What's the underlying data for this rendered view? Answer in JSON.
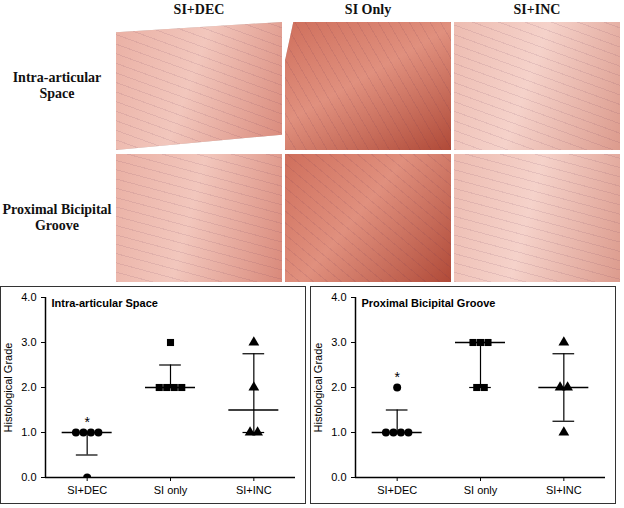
{
  "panel_images": {
    "column_labels": [
      "SI+DEC",
      "SI Only",
      "SI+INC"
    ],
    "row_labels": [
      "Intra-articular Space",
      "Proximal Bicipital Groove"
    ]
  },
  "chart_data": [
    {
      "type": "scatter",
      "title": "Intra-articular Space",
      "ylabel": "Histological Grade",
      "categories": [
        "SI+DEC",
        "SI only",
        "SI+INC"
      ],
      "markers": [
        "circle",
        "square",
        "triangle"
      ],
      "color": "#000000",
      "points": [
        [
          1,
          1,
          1,
          1,
          0
        ],
        [
          2,
          2,
          2,
          2,
          3
        ],
        [
          3,
          2,
          1,
          1
        ]
      ],
      "medians": [
        1,
        2,
        1.5
      ],
      "error_low": [
        0.5,
        2,
        1
      ],
      "error_high": [
        1,
        2.5,
        2.75
      ],
      "annotations": [
        {
          "category": "SI+DEC",
          "text": "*"
        }
      ],
      "ylim": [
        0,
        4
      ],
      "yticks": [
        0,
        1,
        2,
        3,
        4
      ]
    },
    {
      "type": "scatter",
      "title": "Proximal Bicipital Groove",
      "ylabel": "Histological Grade",
      "categories": [
        "SI+DEC",
        "SI only",
        "SI+INC"
      ],
      "markers": [
        "circle",
        "square",
        "triangle"
      ],
      "color": "#000000",
      "points": [
        [
          2,
          1,
          1,
          1,
          1
        ],
        [
          3,
          3,
          3,
          2,
          2
        ],
        [
          3,
          2,
          2,
          1
        ]
      ],
      "medians": [
        1,
        3,
        2
      ],
      "error_low": [
        1,
        2,
        1.25
      ],
      "error_high": [
        1.5,
        3,
        2.75
      ],
      "annotations": [
        {
          "category": "SI+DEC",
          "text": "*"
        }
      ],
      "ylim": [
        0,
        4
      ],
      "yticks": [
        0,
        1,
        2,
        3,
        4
      ]
    }
  ]
}
